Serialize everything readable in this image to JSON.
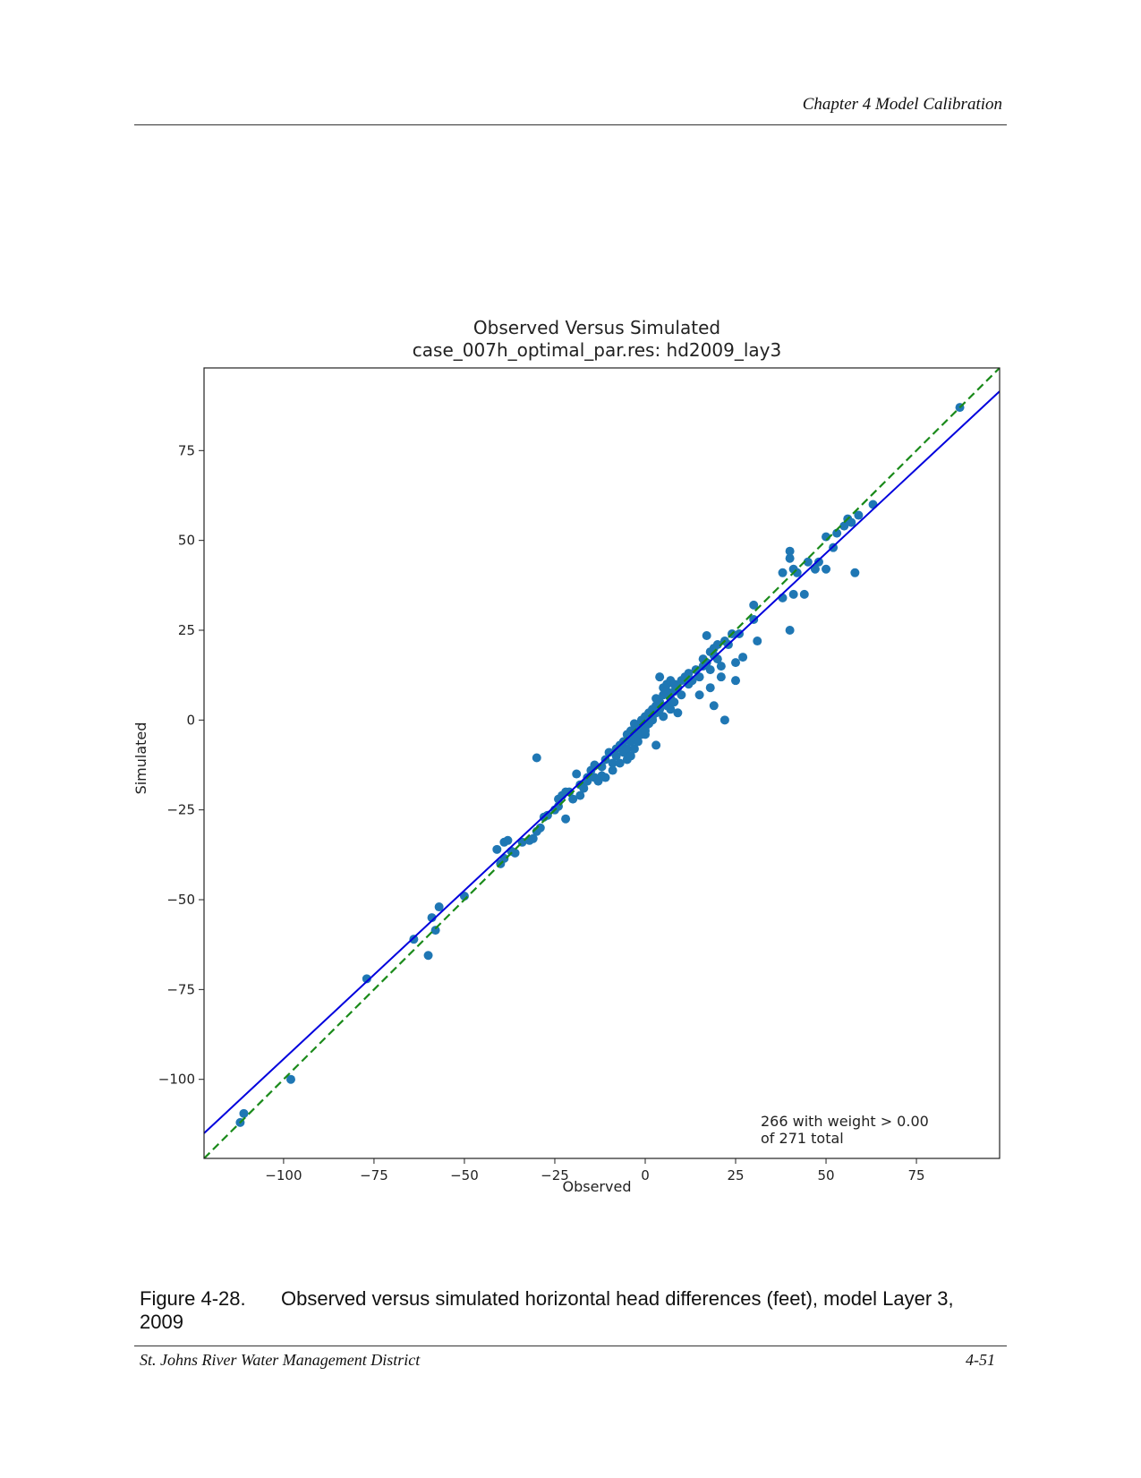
{
  "header": {
    "chapter": "Chapter 4 Model Calibration"
  },
  "caption": {
    "number": "Figure 4-28.",
    "text": "Observed versus simulated horizontal head differences (feet), model Layer 3, 2009"
  },
  "footer": {
    "organization": "St. Johns River Water Management District",
    "page_number": "4-51"
  },
  "chart_data": {
    "type": "scatter",
    "title": "Observed Versus Simulated",
    "subtitle": "case_007h_optimal_par.res: hd2009_lay3",
    "xlabel": "Observed",
    "ylabel": "Simulated",
    "xlim": [
      -122,
      98
    ],
    "ylim": [
      -122,
      98
    ],
    "xticks": [
      -100,
      -75,
      -50,
      -25,
      0,
      25,
      50,
      75
    ],
    "yticks": [
      -100,
      -75,
      -50,
      -25,
      0,
      25,
      50,
      75
    ],
    "xtick_labels": [
      "−100",
      "−75",
      "−50",
      "−25",
      "0",
      "25",
      "50",
      "75"
    ],
    "ytick_labels": [
      "−100",
      "−75",
      "−50",
      "−25",
      "0",
      "25",
      "50",
      "75"
    ],
    "grid": false,
    "annotation": [
      "266 with weight > 0.00",
      "of 271 total"
    ],
    "colors": {
      "points": "#1f77b4",
      "fit_line": "#0000dd",
      "one_to_one": "#1a8a1a"
    },
    "regression_line": {
      "x": [
        -122,
        98
      ],
      "y": [
        -115,
        91.5
      ]
    },
    "one_to_one_line": {
      "x": [
        -122,
        98
      ],
      "y": [
        -122,
        98
      ]
    },
    "points": [
      [
        -112,
        -112
      ],
      [
        -111,
        -109.5
      ],
      [
        -98,
        -100
      ],
      [
        -77,
        -72
      ],
      [
        -64,
        -61
      ],
      [
        -60,
        -65.5
      ],
      [
        -59,
        -55
      ],
      [
        -58,
        -58.5
      ],
      [
        -57,
        -52
      ],
      [
        -50,
        -49
      ],
      [
        -41,
        -36
      ],
      [
        -40,
        -40
      ],
      [
        -39,
        -34
      ],
      [
        -38,
        -33.5
      ],
      [
        -37,
        -36.5
      ],
      [
        -39,
        -38.5
      ],
      [
        -36,
        -37
      ],
      [
        -34,
        -34
      ],
      [
        -32,
        -33.5
      ],
      [
        -31,
        -33
      ],
      [
        -30,
        -31
      ],
      [
        -30,
        -10.5
      ],
      [
        -29,
        -30
      ],
      [
        -28,
        -27
      ],
      [
        -27,
        -26.5
      ],
      [
        -25,
        -25
      ],
      [
        -24,
        -24
      ],
      [
        -24,
        -22
      ],
      [
        -23,
        -21
      ],
      [
        -22,
        -20
      ],
      [
        -22,
        -27.5
      ],
      [
        -21,
        -20
      ],
      [
        -20,
        -22
      ],
      [
        -19,
        -15
      ],
      [
        -18,
        -18
      ],
      [
        -18,
        -21
      ],
      [
        -17,
        -19
      ],
      [
        -16,
        -17
      ],
      [
        -16,
        -16
      ],
      [
        -15,
        -14
      ],
      [
        -14,
        -12.5
      ],
      [
        -14,
        -16
      ],
      [
        -13,
        -17
      ],
      [
        -12,
        -15.5
      ],
      [
        -12,
        -13
      ],
      [
        -11,
        -11
      ],
      [
        -11,
        -16
      ],
      [
        -10,
        -9
      ],
      [
        -9,
        -12
      ],
      [
        -9,
        -14
      ],
      [
        -8,
        -8
      ],
      [
        -8,
        -10
      ],
      [
        -7,
        -7
      ],
      [
        -7,
        -12
      ],
      [
        -6,
        -9
      ],
      [
        -6,
        -6
      ],
      [
        -5,
        -4
      ],
      [
        -5,
        -8
      ],
      [
        -5,
        -11
      ],
      [
        -4,
        -6
      ],
      [
        -4,
        -3
      ],
      [
        -4,
        -10
      ],
      [
        -3,
        -5
      ],
      [
        -3,
        -8
      ],
      [
        -3,
        -1
      ],
      [
        -2,
        -3
      ],
      [
        -2,
        -6
      ],
      [
        -2,
        -2
      ],
      [
        -1,
        -4
      ],
      [
        -1,
        0
      ],
      [
        -1,
        -1
      ],
      [
        0,
        -2
      ],
      [
        0,
        1
      ],
      [
        0,
        -4
      ],
      [
        0,
        -3
      ],
      [
        1,
        0
      ],
      [
        1,
        2
      ],
      [
        1,
        -1
      ],
      [
        2,
        1
      ],
      [
        2,
        3
      ],
      [
        2,
        0
      ],
      [
        3,
        2
      ],
      [
        3,
        4
      ],
      [
        3,
        -7
      ],
      [
        3,
        6
      ],
      [
        4,
        5
      ],
      [
        4,
        3
      ],
      [
        4,
        12
      ],
      [
        5,
        7
      ],
      [
        5,
        1
      ],
      [
        5,
        9
      ],
      [
        6,
        8
      ],
      [
        6,
        4
      ],
      [
        6,
        10
      ],
      [
        7,
        6
      ],
      [
        7,
        11
      ],
      [
        7,
        3
      ],
      [
        8,
        8
      ],
      [
        8,
        5
      ],
      [
        8,
        10
      ],
      [
        9,
        9
      ],
      [
        9,
        2
      ],
      [
        10,
        7
      ],
      [
        10,
        11
      ],
      [
        11,
        12
      ],
      [
        12,
        10
      ],
      [
        12,
        13
      ],
      [
        13,
        11
      ],
      [
        14,
        14
      ],
      [
        15,
        12
      ],
      [
        15,
        7
      ],
      [
        16,
        15
      ],
      [
        16,
        17
      ],
      [
        17,
        16
      ],
      [
        17,
        23.5
      ],
      [
        18,
        19
      ],
      [
        18,
        14
      ],
      [
        18,
        9
      ],
      [
        19,
        20
      ],
      [
        19,
        18
      ],
      [
        19,
        4
      ],
      [
        20,
        17
      ],
      [
        20,
        21
      ],
      [
        21,
        15
      ],
      [
        21,
        12
      ],
      [
        22,
        22
      ],
      [
        22,
        0
      ],
      [
        23,
        21
      ],
      [
        24,
        24
      ],
      [
        25,
        11
      ],
      [
        25,
        16
      ],
      [
        26,
        24
      ],
      [
        27,
        17.5
      ],
      [
        30,
        28
      ],
      [
        30,
        32
      ],
      [
        31,
        22
      ],
      [
        38,
        34
      ],
      [
        38,
        41
      ],
      [
        40,
        45
      ],
      [
        40,
        47
      ],
      [
        40,
        25
      ],
      [
        41,
        35
      ],
      [
        42,
        41
      ],
      [
        41,
        42
      ],
      [
        44,
        35
      ],
      [
        45,
        44
      ],
      [
        47,
        42
      ],
      [
        48,
        44
      ],
      [
        50,
        42
      ],
      [
        50,
        51
      ],
      [
        52,
        48
      ],
      [
        53,
        52
      ],
      [
        55,
        54
      ],
      [
        56,
        56
      ],
      [
        57,
        55
      ],
      [
        58,
        41
      ],
      [
        59,
        57
      ],
      [
        63,
        60
      ],
      [
        87,
        87
      ]
    ]
  }
}
